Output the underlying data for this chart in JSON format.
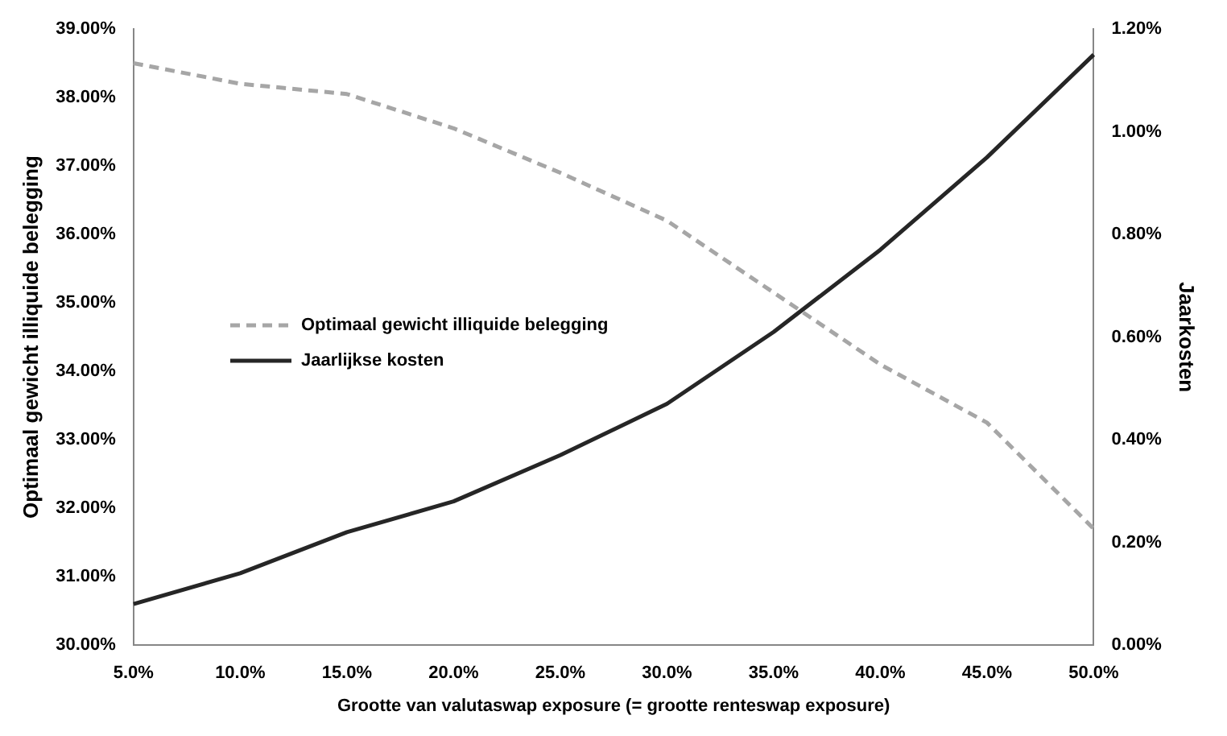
{
  "chart_data": {
    "type": "line",
    "xlabel": "Grootte van valutaswap exposure (= grootte renteswap exposure)",
    "ylabel": "Optimaal gewicht illiquide belegging",
    "y2label": "Jaarkosten",
    "categories": [
      "5.0%",
      "10.0%",
      "15.0%",
      "20.0%",
      "25.0%",
      "30.0%",
      "35.0%",
      "40.0%",
      "45.0%",
      "50.0%"
    ],
    "series": [
      {
        "name": "Optimaal gewicht illiquide belegging",
        "color": "#a6a6a6",
        "line_style": "dashed",
        "values": [
          38.5,
          38.2,
          38.05,
          37.55,
          36.9,
          36.2,
          35.15,
          34.1,
          33.25,
          31.7
        ]
      },
      {
        "name": "Jaarlijkse kosten",
        "color": "#262626",
        "line_style": "solid",
        "axis": "y2",
        "values": [
          0.08,
          0.14,
          0.22,
          0.28,
          0.37,
          0.47,
          0.61,
          0.77,
          0.95,
          1.15
        ]
      }
    ],
    "ylim": [
      30,
      39
    ],
    "yticks": [
      {
        "value": 30,
        "label": "30.00%"
      },
      {
        "value": 31,
        "label": "31.00%"
      },
      {
        "value": 32,
        "label": "32.00%"
      },
      {
        "value": 33,
        "label": "33.00%"
      },
      {
        "value": 34,
        "label": "34.00%"
      },
      {
        "value": 35,
        "label": "35.00%"
      },
      {
        "value": 36,
        "label": "36.00%"
      },
      {
        "value": 37,
        "label": "37.00%"
      },
      {
        "value": 38,
        "label": "38.00%"
      },
      {
        "value": 39,
        "label": "39.00%"
      }
    ],
    "y2lim": [
      0,
      1.2
    ],
    "y2ticks": [
      {
        "value": 0,
        "label": "0.00%"
      },
      {
        "value": 0.2,
        "label": "0.20%"
      },
      {
        "value": 0.4,
        "label": "0.40%"
      },
      {
        "value": 0.6,
        "label": "0.60%"
      },
      {
        "value": 0.8,
        "label": "0.80%"
      },
      {
        "value": 1,
        "label": "1.00%"
      },
      {
        "value": 1.2,
        "label": "1.20%"
      }
    ],
    "grid": false,
    "legend": "center left",
    "marker": "none"
  }
}
